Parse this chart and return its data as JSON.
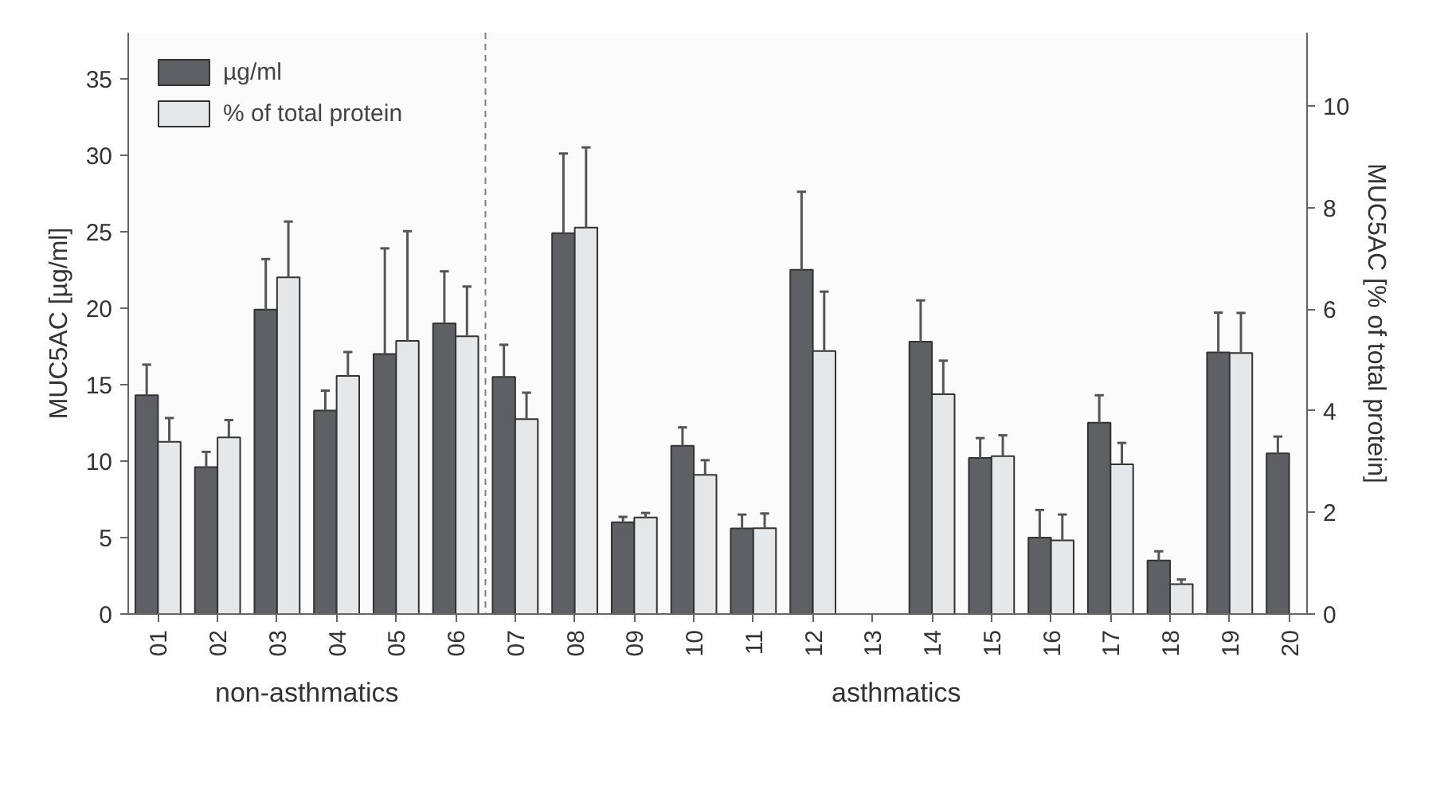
{
  "chart_data": {
    "type": "bar",
    "x": [
      1,
      2,
      3,
      4,
      5,
      6,
      7,
      8,
      9,
      10,
      11,
      12,
      13,
      14,
      15,
      16,
      17,
      18,
      19,
      20
    ],
    "xlim": [
      0.5,
      20.3
    ],
    "xticks": [
      {
        "value": 1,
        "label": "01"
      },
      {
        "value": 2,
        "label": "02"
      },
      {
        "value": 3,
        "label": "03"
      },
      {
        "value": 4,
        "label": "04"
      },
      {
        "value": 5,
        "label": "05"
      },
      {
        "value": 6,
        "label": "06"
      },
      {
        "value": 7,
        "label": "07"
      },
      {
        "value": 8,
        "label": "08"
      },
      {
        "value": 9,
        "label": "09"
      },
      10,
      11,
      12,
      13,
      14,
      15,
      16,
      17,
      18,
      19,
      20
    ],
    "ylabel": "MUC5AC [µg/ml]",
    "y2label": "MUC5AC [% of total protein]",
    "ylim": [
      0,
      38
    ],
    "yticks": [
      0,
      5,
      10,
      15,
      20,
      25,
      30,
      35
    ],
    "y2lim": [
      0,
      11.45
    ],
    "y2ticks": [
      0,
      2,
      4,
      6,
      8,
      10
    ],
    "series": [
      {
        "name": "µg/ml",
        "color": "#5f6064",
        "values": [
          14.3,
          9.6,
          19.9,
          13.3,
          17.0,
          19.0,
          15.5,
          24.9,
          6.0,
          11.0,
          5.6,
          22.5,
          null,
          17.8,
          10.2,
          5.0,
          12.5,
          3.5,
          17.1,
          10.5
        ],
        "errors": [
          [
            14.3,
            16.3
          ],
          [
            9.6,
            10.6
          ],
          [
            19.9,
            23.2
          ],
          [
            13.3,
            14.6
          ],
          [
            17.0,
            23.9
          ],
          [
            19.0,
            22.4
          ],
          [
            15.5,
            17.6
          ],
          [
            24.9,
            30.1
          ],
          [
            6.0,
            6.35
          ],
          [
            11.0,
            12.2
          ],
          [
            5.6,
            6.5
          ],
          [
            22.5,
            27.6
          ],
          null,
          [
            17.8,
            20.5
          ],
          [
            10.2,
            11.5
          ],
          [
            5.0,
            6.8
          ],
          [
            12.5,
            14.3
          ],
          [
            3.5,
            4.1
          ],
          [
            17.1,
            19.7
          ],
          [
            10.5,
            11.6
          ]
        ]
      },
      {
        "name": "% of total protein",
        "color": "#e6e7e8",
        "axis": "y2",
        "values": [
          3.39,
          3.48,
          6.63,
          4.69,
          5.38,
          5.47,
          3.84,
          7.61,
          1.9,
          2.74,
          1.69,
          5.18,
          null,
          4.33,
          3.11,
          1.45,
          2.95,
          0.59,
          5.14,
          null
        ],
        "errors": [
          [
            3.39,
            3.86
          ],
          [
            3.48,
            3.82
          ],
          [
            6.63,
            7.73
          ],
          [
            4.69,
            5.16
          ],
          [
            5.38,
            7.54
          ],
          [
            5.47,
            6.45
          ],
          [
            3.84,
            4.36
          ],
          [
            7.61,
            9.19
          ],
          [
            1.9,
            1.99
          ],
          [
            2.74,
            3.03
          ],
          [
            1.69,
            1.98
          ],
          [
            5.18,
            6.35
          ],
          null,
          [
            4.33,
            4.99
          ],
          [
            3.11,
            3.52
          ],
          [
            1.45,
            1.96
          ],
          [
            2.95,
            3.37
          ],
          [
            0.59,
            0.68
          ],
          [
            5.14,
            5.93
          ],
          null
        ]
      }
    ],
    "ref_lines": [
      {
        "axis": "x",
        "value": 6.5,
        "line_style": "dashed",
        "color": "#808080"
      }
    ],
    "annotations": [
      "non-asthmatics",
      "asthmatics"
    ],
    "legend": "top left",
    "grid": false
  }
}
